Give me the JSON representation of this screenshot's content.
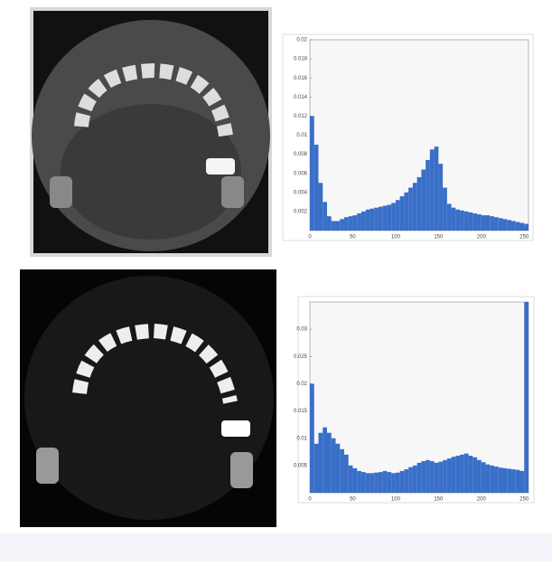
{
  "chart_data": [
    {
      "type": "histogram",
      "color": "#3a6fc8",
      "bins": [
        0,
        5,
        10,
        15,
        20,
        25,
        30,
        35,
        40,
        45,
        50,
        55,
        60,
        65,
        70,
        75,
        80,
        85,
        90,
        95,
        100,
        105,
        110,
        115,
        120,
        125,
        130,
        135,
        140,
        145,
        150,
        155,
        160,
        165,
        170,
        175,
        180,
        185,
        190,
        195,
        200,
        205,
        210,
        215,
        220,
        225,
        230,
        235,
        240,
        245,
        250,
        255
      ],
      "values": [
        0.012,
        0.009,
        0.005,
        0.003,
        0.0015,
        0.001,
        0.001,
        0.0012,
        0.0014,
        0.0015,
        0.0016,
        0.0018,
        0.002,
        0.0022,
        0.0023,
        0.0024,
        0.0025,
        0.0026,
        0.0027,
        0.0029,
        0.0032,
        0.0036,
        0.004,
        0.0045,
        0.005,
        0.0056,
        0.0064,
        0.0074,
        0.0085,
        0.0088,
        0.007,
        0.0045,
        0.0028,
        0.0024,
        0.0022,
        0.0021,
        0.002,
        0.0019,
        0.0018,
        0.0017,
        0.0016,
        0.0016,
        0.0015,
        0.0014,
        0.0013,
        0.0012,
        0.0011,
        0.001,
        0.0009,
        0.0008,
        0.0007
      ],
      "xlim": [
        0,
        255
      ],
      "ylim": [
        0,
        0.02
      ],
      "xticks": [
        0,
        50,
        100,
        150,
        200,
        250
      ],
      "yticks": [
        0.002,
        0.004,
        0.006,
        0.008,
        0.01,
        0.012,
        0.014,
        0.016,
        0.018,
        0.02
      ]
    },
    {
      "type": "histogram",
      "color": "#3a6fc8",
      "bins": [
        0,
        5,
        10,
        15,
        20,
        25,
        30,
        35,
        40,
        45,
        50,
        55,
        60,
        65,
        70,
        75,
        80,
        85,
        90,
        95,
        100,
        105,
        110,
        115,
        120,
        125,
        130,
        135,
        140,
        145,
        150,
        155,
        160,
        165,
        170,
        175,
        180,
        185,
        190,
        195,
        200,
        205,
        210,
        215,
        220,
        225,
        230,
        235,
        240,
        245,
        250,
        255
      ],
      "values": [
        0.02,
        0.009,
        0.011,
        0.012,
        0.011,
        0.01,
        0.009,
        0.008,
        0.007,
        0.005,
        0.0045,
        0.004,
        0.0038,
        0.0036,
        0.0036,
        0.0037,
        0.0038,
        0.004,
        0.0038,
        0.0036,
        0.0037,
        0.004,
        0.0043,
        0.0047,
        0.005,
        0.0055,
        0.0058,
        0.006,
        0.0058,
        0.0055,
        0.0057,
        0.006,
        0.0063,
        0.0066,
        0.0068,
        0.007,
        0.0072,
        0.0068,
        0.0065,
        0.006,
        0.0056,
        0.0052,
        0.005,
        0.0048,
        0.0046,
        0.0045,
        0.0044,
        0.0043,
        0.0042,
        0.004,
        0.035
      ],
      "xlim": [
        0,
        255
      ],
      "ylim": [
        0,
        0.035
      ],
      "xticks": [
        0,
        50,
        100,
        150,
        200,
        250
      ],
      "yticks": [
        0.005,
        0.01,
        0.015,
        0.02,
        0.025,
        0.03
      ]
    }
  ]
}
